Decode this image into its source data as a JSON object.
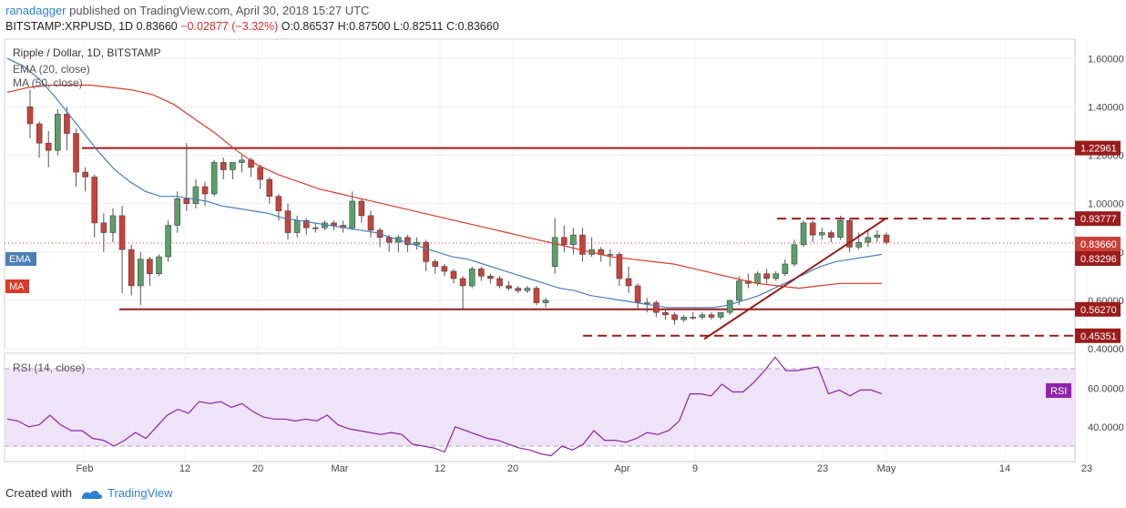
{
  "header": {
    "author": "ranadagger",
    "published_text": "published on TradingView.com, April 30, 2018 15:27 UTC",
    "symbol": "BITSTAMP:XRPUSD, 1D",
    "price": "0.83660",
    "change": "−0.02877 (−3.32%)",
    "o": "O:0.86537",
    "h": "H:0.87500",
    "l": "L:0.82511",
    "c": "C:0.83660"
  },
  "footer": {
    "created_with": "Created with",
    "brand": "TradingView"
  },
  "colors": {
    "up": "#5aa06a",
    "down": "#c8423a",
    "ema": "#4a7fb5",
    "ma": "#d83a2c",
    "level": "#9b1c1c",
    "rsi": "#8e24aa",
    "rsi_band": "#efe3f7"
  },
  "chart_data": [
    {
      "type": "candlestick",
      "title": "Ripple / Dollar, 1D, BITSTAMP",
      "indicator_labels": [
        "EMA (20, close)",
        "MA (50, close)"
      ],
      "badges": {
        "ema": "EMA",
        "ma": "MA"
      },
      "y_ticks": [
        "1.60000",
        "1.40000",
        "1.20000",
        "1.00000",
        "0.80000",
        "0.60000",
        "0.40000"
      ],
      "y_tick_values": [
        1.6,
        1.4,
        1.2,
        1.0,
        0.8,
        0.6,
        0.4
      ],
      "ylim": [
        0.4,
        1.68
      ],
      "x_ticks": [
        "Feb",
        "12",
        "20",
        "Mar",
        "12",
        "20",
        "Apr",
        "9",
        "23",
        "May",
        "14",
        "23"
      ],
      "x_tick_days": [
        0,
        11,
        19,
        28,
        39,
        47,
        59,
        67,
        81,
        88,
        101,
        110
      ],
      "x_day_range": [
        -10,
        118
      ],
      "candles": [
        [
          0.74,
          0.86,
          0.94,
          0.71
        ],
        [
          0.86,
          0.83,
          0.91,
          0.8
        ],
        [
          0.83,
          0.87,
          0.9,
          0.79
        ],
        [
          0.87,
          0.79,
          0.9,
          0.76
        ],
        [
          0.79,
          0.81,
          0.86,
          0.78
        ],
        [
          0.81,
          0.79,
          0.82,
          0.76
        ],
        [
          0.79,
          0.79,
          0.81,
          0.74
        ],
        [
          0.79,
          0.69,
          0.8,
          0.66
        ],
        [
          0.69,
          0.66,
          0.74,
          0.63
        ],
        [
          0.66,
          0.59,
          0.67,
          0.56
        ],
        [
          0.59,
          0.59,
          0.61,
          0.55
        ],
        [
          0.59,
          0.55,
          0.6,
          0.53
        ],
        [
          0.55,
          0.54,
          0.56,
          0.52
        ],
        [
          0.54,
          0.52,
          0.55,
          0.5
        ],
        [
          0.52,
          0.53,
          0.54,
          0.51
        ],
        [
          0.53,
          0.53,
          0.55,
          0.52
        ],
        [
          0.53,
          0.54,
          0.55,
          0.52
        ],
        [
          0.54,
          0.53,
          0.55,
          0.52
        ],
        [
          0.53,
          0.55,
          0.55,
          0.52
        ],
        [
          0.55,
          0.6,
          0.6,
          0.54
        ],
        [
          0.6,
          0.68,
          0.7,
          0.58
        ],
        [
          0.68,
          0.67,
          0.71,
          0.65
        ],
        [
          0.67,
          0.71,
          0.72,
          0.66
        ],
        [
          0.71,
          0.69,
          0.73,
          0.67
        ],
        [
          0.69,
          0.71,
          0.72,
          0.68
        ],
        [
          0.71,
          0.75,
          0.77,
          0.7
        ],
        [
          0.75,
          0.83,
          0.85,
          0.74
        ],
        [
          0.83,
          0.92,
          0.93,
          0.82
        ],
        [
          0.92,
          0.87,
          0.93,
          0.84
        ],
        [
          0.87,
          0.88,
          0.9,
          0.85
        ],
        [
          0.88,
          0.86,
          0.89,
          0.84
        ],
        [
          0.86,
          0.93,
          0.95,
          0.85
        ],
        [
          0.93,
          0.82,
          0.94,
          0.8
        ],
        [
          0.82,
          0.84,
          0.88,
          0.81
        ],
        [
          0.84,
          0.86,
          0.89,
          0.82
        ],
        [
          0.86,
          0.87,
          0.89,
          0.84
        ],
        [
          0.87,
          0.84,
          0.88,
          0.83
        ]
      ],
      "candles_before_feb": [
        [
          1.4,
          1.33,
          1.47,
          1.27
        ],
        [
          1.33,
          1.25,
          1.34,
          1.19
        ],
        [
          1.25,
          1.22,
          1.3,
          1.15
        ],
        [
          1.22,
          1.37,
          1.39,
          1.2
        ],
        [
          1.37,
          1.29,
          1.4,
          1.22
        ],
        [
          1.29,
          1.13,
          1.31,
          1.07
        ],
        [
          1.13,
          1.11,
          1.15,
          1.05
        ],
        [
          1.11,
          0.92,
          1.12,
          0.86
        ],
        [
          0.92,
          0.88,
          0.96,
          0.8
        ],
        [
          0.88,
          0.95,
          0.98,
          0.84
        ],
        [
          0.95,
          0.81,
          0.99,
          0.63
        ],
        [
          0.81,
          0.66,
          0.83,
          0.62
        ],
        [
          0.66,
          0.77,
          0.8,
          0.58
        ],
        [
          0.77,
          0.71,
          0.78,
          0.66
        ],
        [
          0.71,
          0.78,
          0.79,
          0.7
        ],
        [
          0.78,
          0.91,
          0.93,
          0.76
        ],
        [
          0.91,
          1.02,
          1.05,
          0.88
        ],
        [
          1.02,
          1.0,
          1.25,
          0.97
        ],
        [
          1.0,
          1.07,
          1.1,
          0.98
        ],
        [
          1.07,
          1.04,
          1.09,
          0.99
        ],
        [
          1.04,
          1.17,
          1.18,
          1.03
        ],
        [
          1.17,
          1.14,
          1.19,
          1.1
        ],
        [
          1.14,
          1.17,
          1.17,
          1.1
        ],
        [
          1.17,
          1.18,
          1.2,
          1.13
        ],
        [
          1.18,
          1.15,
          1.19,
          1.11
        ],
        [
          1.15,
          1.1,
          1.16,
          1.06
        ],
        [
          1.1,
          1.03,
          1.11,
          1.0
        ],
        [
          1.03,
          0.97,
          1.04,
          0.93
        ],
        [
          0.97,
          0.88,
          1.0,
          0.85
        ],
        [
          0.88,
          0.93,
          0.95,
          0.86
        ],
        [
          0.93,
          0.9,
          0.94,
          0.87
        ],
        [
          0.9,
          0.9,
          0.92,
          0.88
        ],
        [
          0.9,
          0.92,
          0.93,
          0.89
        ],
        [
          0.92,
          0.91,
          0.93,
          0.89
        ],
        [
          0.91,
          0.9,
          0.93,
          0.88
        ],
        [
          0.9,
          1.01,
          1.05,
          0.89
        ],
        [
          1.01,
          0.95,
          1.02,
          0.92
        ],
        [
          0.95,
          0.89,
          0.97,
          0.86
        ],
        [
          0.89,
          0.86,
          0.9,
          0.82
        ],
        [
          0.86,
          0.84,
          0.87,
          0.8
        ],
        [
          0.84,
          0.86,
          0.87,
          0.8
        ],
        [
          0.86,
          0.83,
          0.87,
          0.8
        ],
        [
          0.83,
          0.84,
          0.86,
          0.81
        ],
        [
          0.84,
          0.76,
          0.85,
          0.72
        ],
        [
          0.76,
          0.74,
          0.77,
          0.71
        ],
        [
          0.74,
          0.72,
          0.75,
          0.7
        ],
        [
          0.72,
          0.69,
          0.73,
          0.67
        ],
        [
          0.69,
          0.66,
          0.7,
          0.56
        ],
        [
          0.66,
          0.73,
          0.74,
          0.65
        ],
        [
          0.73,
          0.7,
          0.74,
          0.68
        ],
        [
          0.7,
          0.69,
          0.71,
          0.67
        ],
        [
          0.69,
          0.66,
          0.7,
          0.65
        ],
        [
          0.66,
          0.65,
          0.68,
          0.64
        ],
        [
          0.65,
          0.64,
          0.66,
          0.63
        ],
        [
          0.64,
          0.65,
          0.66,
          0.63
        ],
        [
          0.65,
          0.59,
          0.66,
          0.58
        ],
        [
          0.59,
          0.6,
          0.61,
          0.57
        ]
      ],
      "ema20": [
        1.6,
        1.57,
        1.52,
        1.45,
        1.37,
        1.29,
        1.21,
        1.14,
        1.09,
        1.05,
        1.03,
        1.03,
        1.02,
        1.01,
        0.99,
        0.98,
        0.97,
        0.96,
        0.94,
        0.93,
        0.92,
        0.91,
        0.9,
        0.89,
        0.88,
        0.86,
        0.84,
        0.82,
        0.8,
        0.78,
        0.77,
        0.75,
        0.73,
        0.71,
        0.69,
        0.67,
        0.65,
        0.64,
        0.62,
        0.61,
        0.6,
        0.59,
        0.58,
        0.57,
        0.57,
        0.57,
        0.57,
        0.58,
        0.6,
        0.62,
        0.65,
        0.68,
        0.71,
        0.74,
        0.76,
        0.77,
        0.78,
        0.79
      ],
      "ma50": [
        1.46,
        1.48,
        1.49,
        1.49,
        1.49,
        1.48,
        1.47,
        1.45,
        1.41,
        1.35,
        1.29,
        1.22,
        1.16,
        1.12,
        1.09,
        1.06,
        1.04,
        1.02,
        1.0,
        0.98,
        0.96,
        0.94,
        0.92,
        0.9,
        0.88,
        0.86,
        0.84,
        0.82,
        0.8,
        0.78,
        0.77,
        0.76,
        0.75,
        0.73,
        0.71,
        0.69,
        0.67,
        0.66,
        0.65,
        0.66,
        0.67,
        0.67,
        0.67
      ],
      "levels": [
        {
          "label": "1.22961",
          "value": 1.22961,
          "style": "solid"
        },
        {
          "label": "0.93777",
          "value": 0.93777,
          "style": "dashed"
        },
        {
          "label": "0.56270",
          "value": 0.5627,
          "style": "solid"
        },
        {
          "label": "0.45351",
          "value": 0.45351,
          "style": "dashed"
        }
      ],
      "price_badges": [
        {
          "label": "0.83660",
          "value": 0.8366,
          "kind": "last"
        },
        {
          "label": "0.83296",
          "value": 0.83296,
          "kind": "ema"
        },
        {
          "label": "0.93777",
          "value": 0.93777,
          "kind": "level"
        },
        {
          "label": "1.22961",
          "value": 1.22961,
          "kind": "level"
        },
        {
          "label": "0.56270",
          "value": 0.5627,
          "kind": "level"
        },
        {
          "label": "0.45351",
          "value": 0.45351,
          "kind": "level"
        }
      ],
      "trendline": [
        [
          68,
          0.44
        ],
        [
          88,
          0.94
        ]
      ]
    },
    {
      "type": "line",
      "title": "RSI (14, close)",
      "badge": "RSI",
      "y_ticks": [
        "60.0000",
        "40.0000"
      ],
      "y_tick_values": [
        60,
        40
      ],
      "ylim": [
        22,
        78
      ],
      "band": [
        30,
        70
      ],
      "values": [
        44,
        43,
        40,
        41,
        46,
        41,
        38,
        38,
        34,
        33,
        30,
        33,
        37,
        34,
        40,
        46,
        49,
        47,
        53,
        52,
        53,
        50,
        52,
        48,
        45,
        44,
        44,
        43,
        44,
        43,
        46,
        41,
        39,
        38,
        37,
        36,
        37,
        36,
        31,
        30,
        29,
        27,
        40,
        38,
        36,
        34,
        33,
        31,
        29,
        28,
        26,
        25,
        30,
        28,
        31,
        38,
        33,
        33,
        32,
        34,
        37,
        36,
        38,
        43,
        57,
        57,
        56,
        62,
        58,
        58,
        63,
        69,
        76,
        69,
        69,
        70,
        71,
        57,
        59,
        56,
        59,
        59,
        57
      ]
    }
  ]
}
